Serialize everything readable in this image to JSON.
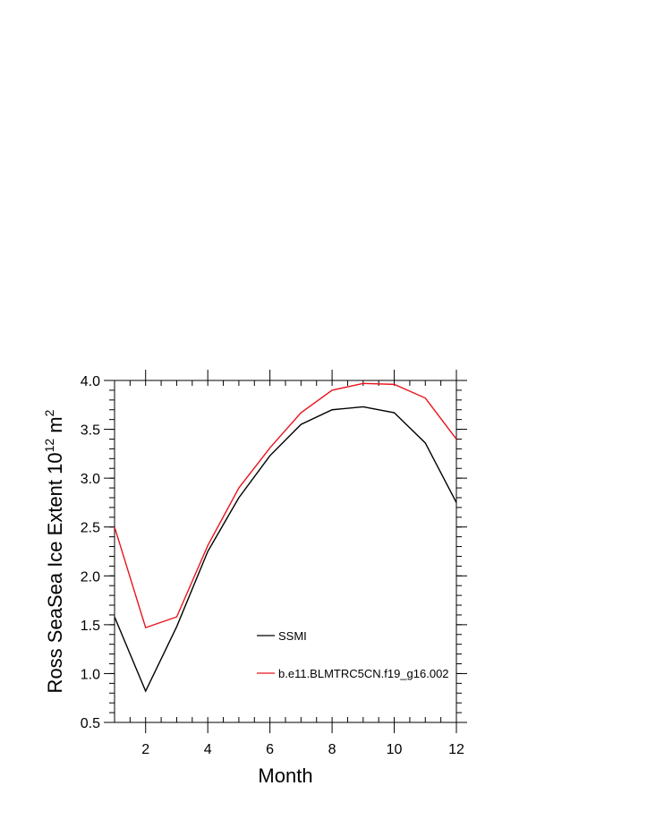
{
  "chart_data": {
    "type": "line",
    "xlabel": "Month",
    "ylabel_main": "Ross SeaSea Ice Extent 10",
    "ylabel_sup": "12",
    "ylabel_unit": " m",
    "ylabel_sup2": "2",
    "xlim": [
      1,
      12
    ],
    "ylim": [
      0.5,
      4.0
    ],
    "xticks": [
      2,
      4,
      6,
      8,
      10,
      12
    ],
    "yticks": [
      0.5,
      1.0,
      1.5,
      2.0,
      2.5,
      3.0,
      3.5,
      4.0
    ],
    "ytick_labels": [
      "0.5",
      "1.0",
      "1.5",
      "2.0",
      "2.5",
      "3.0",
      "3.5",
      "4.0"
    ],
    "x": [
      1,
      2,
      3,
      4,
      5,
      6,
      7,
      8,
      9,
      10,
      11,
      12
    ],
    "series": [
      {
        "name": "SSMI",
        "color": "#000000",
        "values": [
          1.58,
          0.82,
          1.48,
          2.25,
          2.8,
          3.23,
          3.55,
          3.7,
          3.73,
          3.67,
          3.36,
          2.75
        ]
      },
      {
        "name": "b.e11.BLMTRC5CN.f19_g16.002",
        "color": "#e8141e",
        "values": [
          2.5,
          1.47,
          1.58,
          2.31,
          2.9,
          3.31,
          3.67,
          3.9,
          3.97,
          3.96,
          3.82,
          3.4
        ]
      }
    ],
    "grid": false,
    "legend_position": "inside, lower center"
  }
}
